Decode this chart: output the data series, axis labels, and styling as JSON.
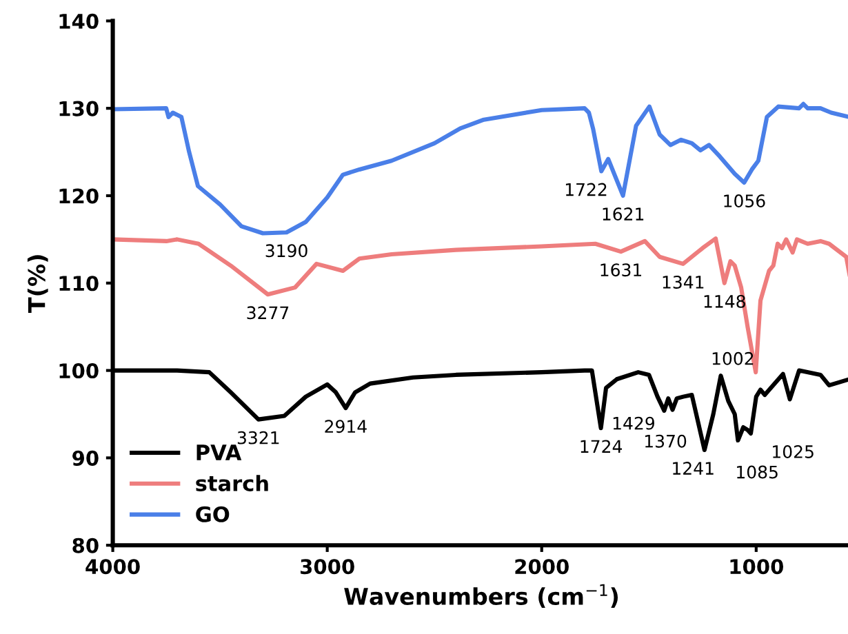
{
  "chart_data": {
    "type": "line",
    "xlabel": "Wavenumbers (cm$^{−1}$)",
    "ylabel": "T(%)",
    "xlim": [
      4000,
      560
    ],
    "ylim": [
      80,
      140
    ],
    "xticks": [
      4000,
      3000,
      2000,
      1000
    ],
    "yticks": [
      80,
      90,
      100,
      110,
      120,
      130,
      140
    ],
    "grid": false,
    "legend": "bottom left",
    "marker": "none",
    "line_style": "solid",
    "series": [
      {
        "name": "PVA",
        "color": "#000000",
        "x": [
          4000,
          3700,
          3550,
          3450,
          3321,
          3200,
          3100,
          3000,
          2960,
          2914,
          2870,
          2800,
          2600,
          2400,
          2000,
          1800,
          1766,
          1724,
          1700,
          1650,
          1550,
          1500,
          1460,
          1429,
          1410,
          1390,
          1370,
          1340,
          1300,
          1241,
          1200,
          1165,
          1130,
          1100,
          1085,
          1060,
          1040,
          1025,
          1000,
          980,
          960,
          875,
          843,
          800,
          700,
          660,
          565
        ],
        "values": [
          100,
          100,
          99.8,
          97.5,
          94.4,
          94.8,
          97,
          98.4,
          97.5,
          95.7,
          97.5,
          98.5,
          99.2,
          99.5,
          99.8,
          100,
          100,
          93.4,
          98,
          99,
          99.8,
          99.5,
          97,
          95.4,
          96.8,
          95.5,
          96.8,
          97,
          97.2,
          90.9,
          95,
          99.4,
          96.5,
          95,
          92,
          93.5,
          93.2,
          92.8,
          97,
          97.8,
          97.2,
          99.6,
          96.7,
          100,
          99.5,
          98.3,
          99
        ]
      },
      {
        "name": "starch",
        "color": "#ee7d7d",
        "x": [
          4000,
          3750,
          3700,
          3600,
          3450,
          3277,
          3150,
          3050,
          2927,
          2850,
          2700,
          2400,
          2000,
          1750,
          1631,
          1519,
          1450,
          1341,
          1250,
          1189,
          1148,
          1120,
          1100,
          1070,
          1040,
          1002,
          980,
          940,
          920,
          900,
          880,
          860,
          830,
          810,
          760,
          700,
          660,
          580,
          565
        ],
        "values": [
          115,
          114.8,
          115,
          114.5,
          112,
          108.7,
          109.5,
          112.2,
          111.4,
          112.8,
          113.3,
          113.8,
          114.2,
          114.5,
          113.6,
          114.8,
          113,
          112.2,
          114,
          115.1,
          110,
          112.5,
          112,
          109.5,
          105,
          99.8,
          108,
          111.4,
          112,
          114.5,
          114,
          115,
          113.5,
          115,
          114.5,
          114.8,
          114.5,
          113,
          111
        ]
      },
      {
        "name": "GO",
        "color": "#4a7fe8",
        "x": [
          4000,
          3751,
          3740,
          3720,
          3680,
          3644,
          3603,
          3500,
          3400,
          3300,
          3190,
          3100,
          3000,
          2927,
          2850,
          2700,
          2500,
          2380,
          2270,
          2000,
          1800,
          1780,
          1760,
          1722,
          1690,
          1621,
          1560,
          1498,
          1450,
          1400,
          1350,
          1300,
          1260,
          1220,
          1170,
          1100,
          1056,
          1020,
          990,
          950,
          897,
          800,
          780,
          760,
          700,
          650,
          565
        ],
        "values": [
          129.9,
          130,
          129,
          129.5,
          129,
          125,
          121.1,
          119,
          116.5,
          115.7,
          115.8,
          117,
          119.8,
          122.4,
          123,
          124,
          126,
          127.7,
          128.7,
          129.8,
          130,
          129.5,
          127.6,
          122.8,
          124.2,
          120,
          128,
          130.2,
          127,
          125.8,
          126.4,
          126,
          125.2,
          125.8,
          124.5,
          122.5,
          121.5,
          123,
          124,
          129,
          130.2,
          130,
          130.5,
          130,
          130,
          129.5,
          129
        ]
      }
    ],
    "annotations": [
      {
        "text": "3190",
        "x": 3190,
        "y": 115.8
      },
      {
        "text": "1722",
        "x": 1722,
        "y": 122.8
      },
      {
        "text": "1621",
        "x": 1621,
        "y": 120
      },
      {
        "text": "1056",
        "x": 1056,
        "y": 121.5
      },
      {
        "text": "3277",
        "x": 3277,
        "y": 108.7
      },
      {
        "text": "1631",
        "x": 1631,
        "y": 113.6
      },
      {
        "text": "1341",
        "x": 1341,
        "y": 112.2
      },
      {
        "text": "1148",
        "x": 1148,
        "y": 110
      },
      {
        "text": "1002",
        "x": 1002,
        "y": 99.8
      },
      {
        "text": "3321",
        "x": 3321,
        "y": 94.4
      },
      {
        "text": "2914",
        "x": 2914,
        "y": 95.7
      },
      {
        "text": "1724",
        "x": 1724,
        "y": 93.4
      },
      {
        "text": "1429",
        "x": 1429,
        "y": 95.4
      },
      {
        "text": "1370",
        "x": 1370,
        "y": 95.1
      },
      {
        "text": "1241",
        "x": 1241,
        "y": 90.9
      },
      {
        "text": "1085",
        "x": 1085,
        "y": 92
      },
      {
        "text": "1025",
        "x": 1025,
        "y": 92.8
      }
    ]
  }
}
